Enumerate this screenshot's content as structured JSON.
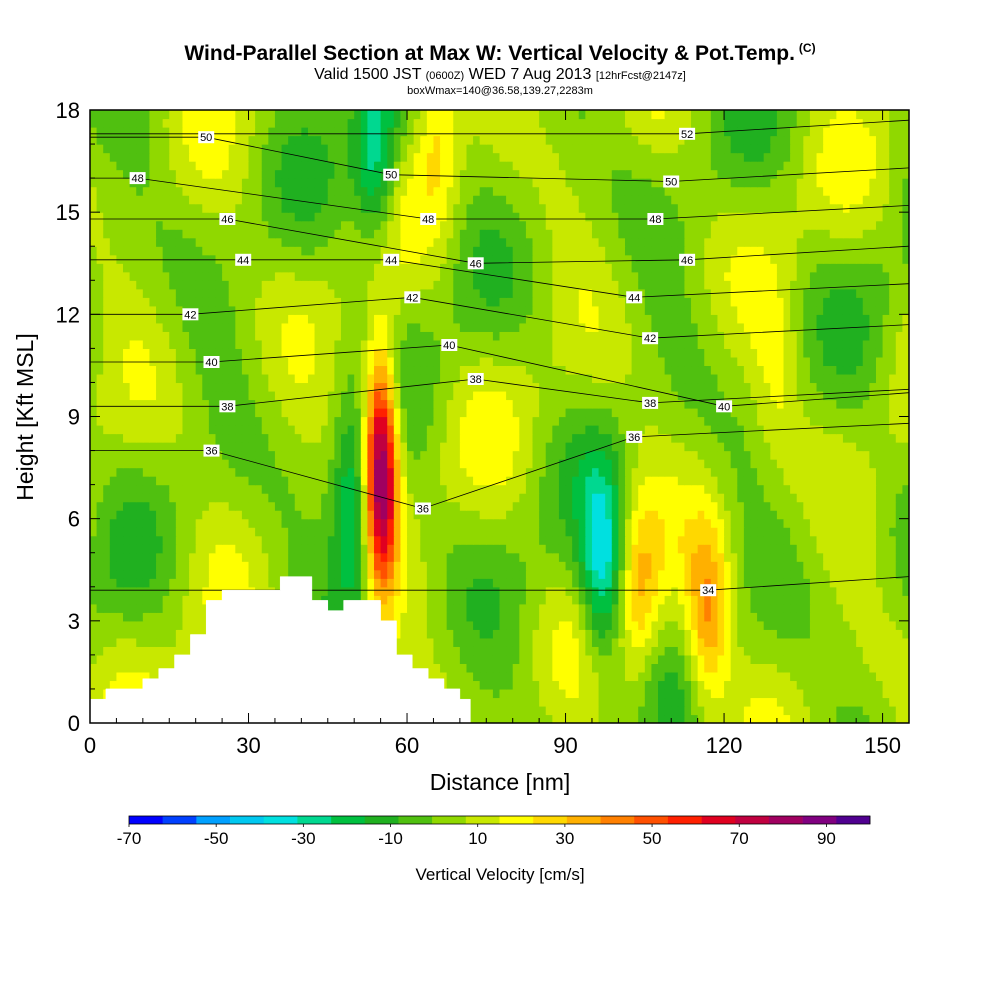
{
  "title": {
    "main": "Wind-Parallel Section at Max W: Vertical Velocity & Pot.Temp.",
    "copyright": "(C)",
    "valid_prefix": "Valid 1500 JST",
    "valid_utc": "(0600Z)",
    "valid_date": "WED 7 Aug 2013",
    "forecast": "[12hrFcst@2147z]",
    "box_info": "boxWmax=140@36.58,139.27,2283m"
  },
  "chart_data": {
    "type": "heatmap",
    "xlabel": "Distance [nm]",
    "ylabel": "Height [Kft MSL]",
    "xlim": [
      0,
      155
    ],
    "ylim": [
      0,
      18
    ],
    "xticks": [
      0,
      30,
      60,
      90,
      120,
      150
    ],
    "yticks": [
      0,
      3,
      6,
      9,
      12,
      15,
      18
    ],
    "colorbar": {
      "label": "Vertical Velocity [cm/s]",
      "range": [
        -70,
        100
      ],
      "tick_labels": [
        "-70",
        "-50",
        "-30",
        "-10",
        "10",
        "30",
        "50",
        "70",
        "90"
      ],
      "tick_values": [
        -70,
        -50,
        -30,
        -10,
        10,
        30,
        50,
        70,
        90
      ],
      "colors": [
        "#0000ff",
        "#0040ff",
        "#00a0ff",
        "#00c8f0",
        "#00e0e0",
        "#00d890",
        "#00c040",
        "#20b020",
        "#50c010",
        "#90d800",
        "#c8e800",
        "#ffff00",
        "#ffd800",
        "#ffb000",
        "#ff8000",
        "#ff5000",
        "#ff2000",
        "#e00020",
        "#c00040",
        "#a00060",
        "#800080",
        "#500090"
      ]
    },
    "velocity_features": [
      {
        "name": "updraft core",
        "x": 55,
        "y": 7.5,
        "max": 95
      },
      {
        "name": "updraft",
        "x": 104,
        "y": 4,
        "max": 30
      },
      {
        "name": "updraft",
        "x": 117,
        "y": 3,
        "max": 40
      },
      {
        "name": "updraft upper",
        "x": 130,
        "y": 10,
        "max": 15
      },
      {
        "name": "updraft upper",
        "x": 66,
        "y": 17.5,
        "max": 25
      },
      {
        "name": "downdraft",
        "x": 50,
        "y": 6,
        "max": -30
      },
      {
        "name": "downdraft",
        "x": 97,
        "y": 4.5,
        "max": -35
      },
      {
        "name": "downdraft",
        "x": 54,
        "y": 16.5,
        "max": -30
      }
    ],
    "theta_contour_labels": [
      {
        "text": "50",
        "x": 22,
        "y": 17.2
      },
      {
        "text": "48",
        "x": 9,
        "y": 16.0
      },
      {
        "text": "46",
        "x": 26,
        "y": 14.8
      },
      {
        "text": "44",
        "x": 29,
        "y": 13.6
      },
      {
        "text": "42",
        "x": 19,
        "y": 12.0
      },
      {
        "text": "40",
        "x": 23,
        "y": 10.6
      },
      {
        "text": "38",
        "x": 26,
        "y": 9.3
      },
      {
        "text": "36",
        "x": 23,
        "y": 8.0
      },
      {
        "text": "50",
        "x": 57,
        "y": 16.1
      },
      {
        "text": "48",
        "x": 64,
        "y": 14.8
      },
      {
        "text": "46",
        "x": 73,
        "y": 13.5
      },
      {
        "text": "44",
        "x": 57,
        "y": 13.6
      },
      {
        "text": "42",
        "x": 61,
        "y": 12.5
      },
      {
        "text": "40",
        "x": 68,
        "y": 11.1
      },
      {
        "text": "38",
        "x": 73,
        "y": 10.1
      },
      {
        "text": "36",
        "x": 63,
        "y": 6.3
      },
      {
        "text": "52",
        "x": 113,
        "y": 17.3
      },
      {
        "text": "50",
        "x": 110,
        "y": 15.9
      },
      {
        "text": "48",
        "x": 107,
        "y": 14.8
      },
      {
        "text": "46",
        "x": 113,
        "y": 13.6
      },
      {
        "text": "44",
        "x": 103,
        "y": 12.5
      },
      {
        "text": "42",
        "x": 106,
        "y": 11.3
      },
      {
        "text": "38",
        "x": 106,
        "y": 9.4
      },
      {
        "text": "40",
        "x": 120,
        "y": 9.3
      },
      {
        "text": "36",
        "x": 103,
        "y": 8.4
      },
      {
        "text": "34",
        "x": 117,
        "y": 3.9
      }
    ],
    "terrain": [
      [
        0,
        0.7
      ],
      [
        3,
        0.7
      ],
      [
        3,
        1.0
      ],
      [
        10,
        1.0
      ],
      [
        10,
        1.3
      ],
      [
        13,
        1.3
      ],
      [
        13,
        1.6
      ],
      [
        16,
        1.6
      ],
      [
        16,
        2.0
      ],
      [
        19,
        2.0
      ],
      [
        19,
        2.6
      ],
      [
        22,
        2.6
      ],
      [
        22,
        3.6
      ],
      [
        25,
        3.6
      ],
      [
        25,
        3.9
      ],
      [
        36,
        3.9
      ],
      [
        36,
        4.3
      ],
      [
        42,
        4.3
      ],
      [
        42,
        3.6
      ],
      [
        45,
        3.6
      ],
      [
        45,
        3.3
      ],
      [
        48,
        3.3
      ],
      [
        48,
        3.6
      ],
      [
        55,
        3.6
      ],
      [
        55,
        3.0
      ],
      [
        58,
        3.0
      ],
      [
        58,
        2.0
      ],
      [
        61,
        2.0
      ],
      [
        61,
        1.6
      ],
      [
        64,
        1.6
      ],
      [
        64,
        1.3
      ],
      [
        67,
        1.3
      ],
      [
        67,
        1.0
      ],
      [
        70,
        1.0
      ],
      [
        70,
        0.7
      ],
      [
        72,
        0.7
      ],
      [
        72,
        0
      ]
    ]
  }
}
